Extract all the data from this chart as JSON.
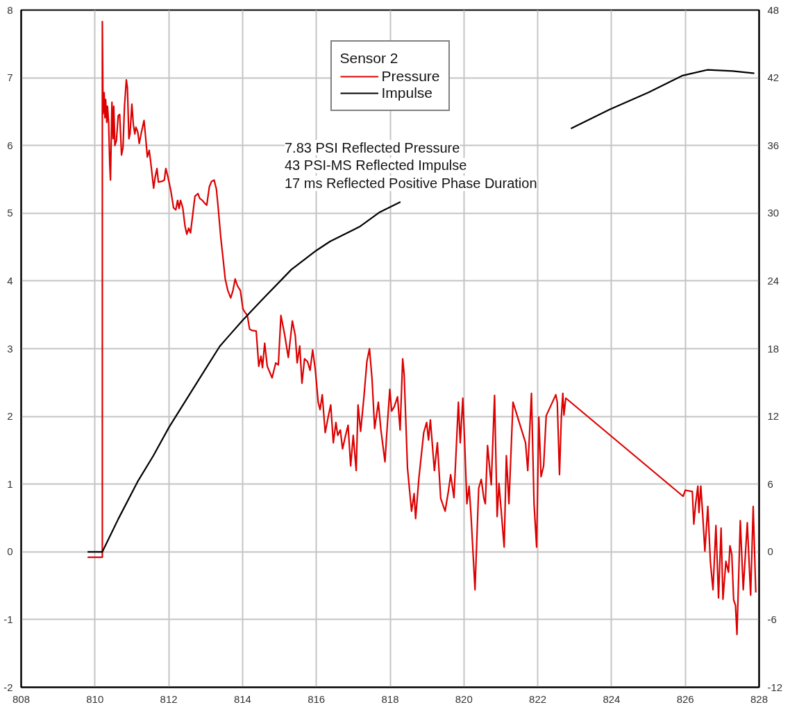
{
  "chart_data": {
    "type": "line",
    "xlim": [
      808,
      828
    ],
    "xticks": [
      808,
      810,
      812,
      814,
      816,
      818,
      820,
      822,
      824,
      826,
      828
    ],
    "ylim": [
      -2,
      8
    ],
    "yticks": [
      -2,
      -1,
      0,
      1,
      2,
      3,
      4,
      5,
      6,
      7,
      8
    ],
    "y2lim": [
      -12,
      48
    ],
    "y2ticks": [
      -12,
      -6,
      0,
      6,
      12,
      18,
      24,
      30,
      36,
      42,
      48
    ],
    "grid": true,
    "legend": "top",
    "legend_title": "Sensor 2",
    "annotations": [
      "7.83 PSI Reflected Pressure",
      "43 PSI-MS Reflected Impulse",
      "17 ms Reflected Positive Phase Duration"
    ],
    "series": [
      {
        "name": "Pressure",
        "color": "#dc0000",
        "x": [
          809.8,
          810.2,
          810.2,
          810.22,
          810.25,
          810.27,
          810.29,
          810.32,
          810.34,
          810.37,
          810.4,
          810.42,
          810.46,
          810.49,
          810.51,
          810.54,
          810.58,
          810.63,
          810.67,
          810.72,
          810.76,
          810.8,
          810.85,
          810.88,
          810.92,
          810.95,
          811.0,
          811.04,
          811.08,
          811.11,
          811.16,
          811.2,
          811.25,
          811.33,
          811.37,
          811.42,
          811.47,
          811.51,
          811.59,
          811.63,
          811.68,
          811.72,
          811.81,
          811.88,
          811.92,
          811.98,
          812.06,
          812.13,
          812.19,
          812.24,
          812.28,
          812.32,
          812.38,
          812.44,
          812.49,
          812.54,
          812.59,
          812.65,
          812.71,
          812.79,
          812.84,
          812.91,
          812.97,
          813.03,
          813.1,
          813.16,
          813.23,
          813.29,
          813.34,
          813.41,
          813.47,
          813.53,
          813.6,
          813.68,
          813.74,
          813.8,
          813.86,
          813.94,
          814.01,
          814.05,
          814.13,
          814.19,
          814.25,
          814.37,
          814.44,
          814.5,
          814.54,
          814.6,
          814.67,
          814.8,
          814.9,
          814.97,
          815.04,
          815.14,
          815.24,
          815.35,
          815.43,
          815.48,
          815.55,
          815.61,
          815.68,
          815.76,
          815.83,
          815.9,
          815.97,
          816.05,
          816.1,
          816.16,
          816.24,
          816.32,
          816.39,
          816.46,
          816.53,
          816.58,
          816.65,
          816.71,
          816.78,
          816.86,
          816.93,
          817.0,
          817.08,
          817.13,
          817.2,
          817.29,
          817.37,
          817.44,
          817.51,
          817.58,
          817.68,
          817.75,
          817.86,
          817.92,
          817.99,
          818.04,
          818.11,
          818.2,
          818.27,
          818.34,
          818.38,
          818.47,
          818.58,
          818.65,
          818.69,
          818.78,
          818.91,
          818.99,
          819.04,
          819.09,
          819.2,
          819.28,
          819.37,
          819.49,
          819.58,
          819.64,
          819.73,
          819.85,
          819.9,
          819.97,
          820.02,
          820.08,
          820.14,
          820.19,
          820.3,
          820.4,
          820.47,
          820.54,
          820.58,
          820.64,
          820.74,
          820.83,
          820.9,
          820.95,
          821.09,
          821.15,
          821.22,
          821.33,
          821.67,
          821.73,
          821.83,
          821.9,
          821.97,
          822.03,
          822.09,
          822.16,
          822.23,
          822.49,
          822.53,
          822.59,
          822.64,
          822.68,
          822.71,
          822.76,
          825.94,
          826.0,
          826.19,
          826.23,
          826.28,
          826.34,
          826.37,
          826.42,
          826.47,
          826.53,
          826.61,
          826.68,
          826.75,
          826.83,
          826.9,
          826.97,
          827.02,
          827.1,
          827.17,
          827.21,
          827.26,
          827.31,
          827.36,
          827.4,
          827.49,
          827.57,
          827.68,
          827.77,
          827.84,
          827.91
        ],
        "values": [
          -0.08,
          -0.08,
          7.83,
          6.47,
          6.78,
          6.41,
          6.68,
          6.34,
          6.58,
          6.34,
          5.73,
          5.49,
          6.64,
          6.1,
          6.58,
          6.0,
          6.07,
          6.44,
          6.46,
          5.86,
          5.97,
          6.58,
          6.97,
          6.85,
          6.1,
          6.17,
          6.61,
          6.31,
          6.17,
          6.27,
          6.2,
          6.03,
          6.17,
          6.37,
          6.14,
          5.83,
          5.93,
          5.76,
          5.37,
          5.53,
          5.66,
          5.46,
          5.47,
          5.49,
          5.66,
          5.53,
          5.32,
          5.08,
          5.05,
          5.19,
          5.07,
          5.19,
          5.08,
          4.81,
          4.69,
          4.78,
          4.71,
          4.98,
          5.25,
          5.29,
          5.22,
          5.19,
          5.15,
          5.12,
          5.39,
          5.47,
          5.49,
          5.36,
          5.08,
          4.64,
          4.34,
          4.03,
          3.86,
          3.75,
          3.86,
          4.03,
          3.93,
          3.86,
          3.59,
          3.55,
          3.49,
          3.29,
          3.27,
          3.26,
          2.74,
          2.89,
          2.72,
          3.08,
          2.74,
          2.57,
          2.79,
          2.76,
          3.49,
          3.21,
          2.87,
          3.41,
          3.19,
          2.79,
          3.04,
          2.49,
          2.85,
          2.81,
          2.68,
          2.98,
          2.7,
          2.21,
          2.1,
          2.32,
          1.76,
          1.99,
          2.17,
          1.61,
          1.91,
          1.72,
          1.8,
          1.52,
          1.69,
          1.87,
          1.27,
          1.72,
          1.2,
          2.17,
          1.78,
          2.29,
          2.81,
          3.0,
          2.55,
          1.82,
          2.21,
          1.8,
          1.33,
          1.84,
          2.4,
          2.08,
          2.14,
          2.29,
          1.8,
          2.85,
          2.62,
          1.24,
          0.6,
          0.86,
          0.49,
          1.09,
          1.76,
          1.91,
          1.65,
          1.95,
          1.2,
          1.61,
          0.79,
          0.6,
          0.9,
          1.14,
          0.8,
          2.21,
          1.61,
          2.27,
          1.61,
          0.71,
          0.97,
          0.56,
          -0.56,
          0.94,
          1.07,
          0.79,
          0.71,
          1.57,
          0.99,
          2.31,
          0.52,
          1.01,
          0.07,
          1.42,
          0.71,
          2.21,
          1.61,
          1.2,
          2.34,
          0.71,
          0.07,
          1.99,
          1.11,
          1.27,
          2.01,
          2.32,
          2.21,
          1.14,
          1.99,
          2.34,
          2.02,
          2.27,
          0.82,
          0.91,
          0.89,
          0.41,
          0.71,
          0.97,
          0.58,
          0.97,
          0.56,
          0.01,
          0.67,
          -0.15,
          -0.56,
          0.39,
          -0.68,
          0.35,
          -0.7,
          -0.14,
          -0.3,
          0.09,
          -0.04,
          -0.71,
          -0.79,
          -1.22,
          0.46,
          -0.56,
          0.43,
          -0.64,
          0.67,
          -0.6
        ]
      },
      {
        "name": "Impulse",
        "color": "#000000",
        "axis": "y2",
        "x": [
          809.8,
          810.2,
          810.63,
          811.17,
          811.58,
          812.0,
          812.42,
          812.9,
          813.38,
          813.62,
          814.0,
          814.52,
          815.32,
          816.0,
          816.37,
          817.17,
          817.72,
          818.28,
          820.6,
          822.9,
          823.95,
          825.0,
          825.93,
          826.6,
          827.28,
          827.87
        ],
        "values": [
          0,
          0,
          2.9,
          6.3,
          8.5,
          11.0,
          13.2,
          15.7,
          18.2,
          19.1,
          20.5,
          22.3,
          25.0,
          26.7,
          27.5,
          28.8,
          30.1,
          31.0,
          null,
          37.5,
          39.2,
          40.7,
          42.2,
          42.7,
          42.6,
          42.4
        ]
      }
    ]
  }
}
